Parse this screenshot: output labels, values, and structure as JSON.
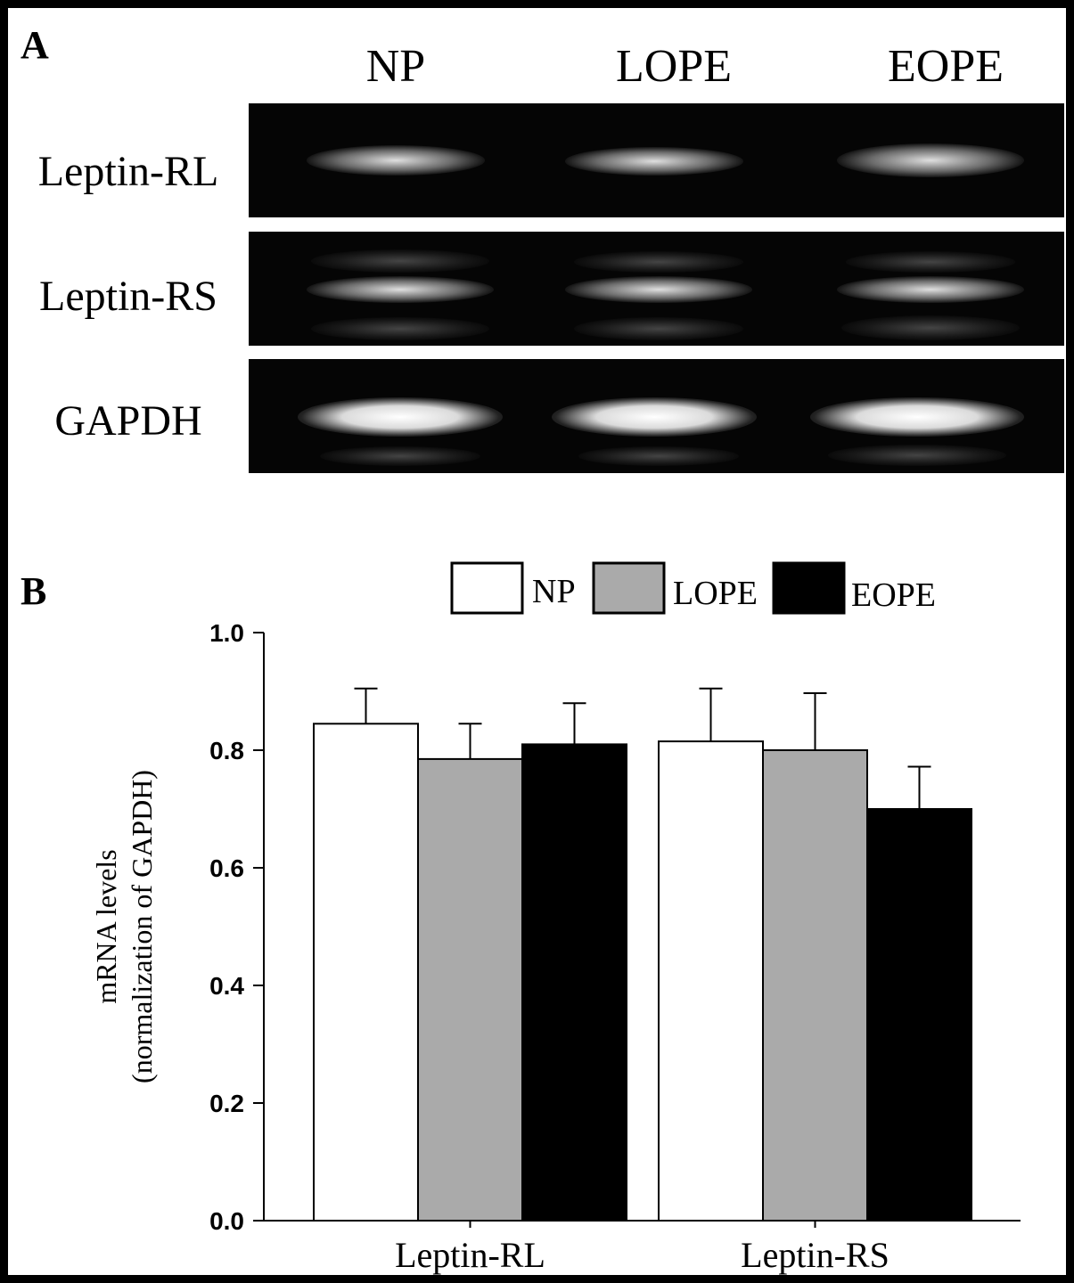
{
  "panel_a": {
    "letter": "A",
    "lanes": [
      "NP",
      "LOPE",
      "EOPE"
    ],
    "rows": [
      "Leptin-RL",
      "Leptin-RS",
      "GAPDH"
    ]
  },
  "panel_b": {
    "letter": "B"
  },
  "chart_data": {
    "type": "bar",
    "categories": [
      "Leptin-RL",
      "Leptin-RS"
    ],
    "series": [
      {
        "name": "NP",
        "color": "#ffffff",
        "values": [
          0.845,
          0.815
        ],
        "errors": [
          0.06,
          0.09
        ]
      },
      {
        "name": "LOPE",
        "color": "#aaaaaa",
        "values": [
          0.785,
          0.8
        ],
        "errors": [
          0.06,
          0.097
        ]
      },
      {
        "name": "EOPE",
        "color": "#000000",
        "values": [
          0.81,
          0.7
        ],
        "errors": [
          0.07,
          0.072
        ]
      }
    ],
    "ylabel_line1": "mRNA levels",
    "ylabel_line2": "(normalization of GAPDH)",
    "xlabel": "",
    "ylim": [
      0.0,
      1.0
    ],
    "yticks": [
      "0.0",
      "0.2",
      "0.4",
      "0.6",
      "0.8",
      "1.0"
    ],
    "legend_position": "top"
  }
}
